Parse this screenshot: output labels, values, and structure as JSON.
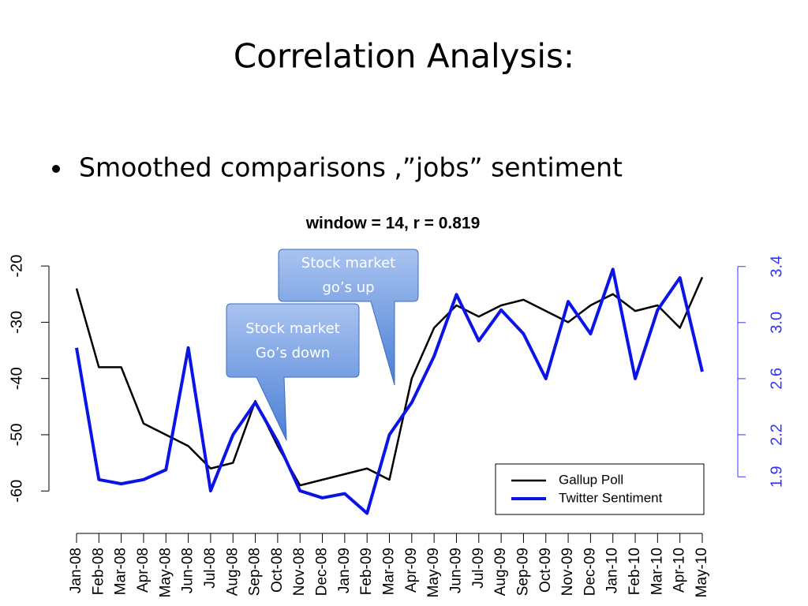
{
  "slide_title": "Correlation Analysis:",
  "bullet": "Smoothed comparisons ,”jobs” sentiment",
  "callouts": [
    {
      "lines": [
        "Stock market",
        "Go’s down"
      ]
    },
    {
      "lines": [
        "Stock market",
        "go’s up"
      ]
    }
  ],
  "chart_data": {
    "type": "line",
    "title": "window = 14, r = 0.819",
    "categories": [
      "Jan-08",
      "Feb-08",
      "Mar-08",
      "Apr-08",
      "May-08",
      "Jun-08",
      "Jul-08",
      "Aug-08",
      "Sep-08",
      "Oct-08",
      "Nov-08",
      "Dec-08",
      "Jan-09",
      "Feb-09",
      "Mar-09",
      "Apr-09",
      "May-09",
      "Jun-09",
      "Jul-09",
      "Aug-09",
      "Sep-09",
      "Oct-09",
      "Nov-09",
      "Dec-09",
      "Jan-10",
      "Feb-10",
      "Mar-10",
      "Apr-10",
      "May-10"
    ],
    "series": [
      {
        "name": "Gallup Poll",
        "color": "#000000",
        "axis": "y",
        "values": [
          -24,
          -38,
          -38,
          -48,
          -50,
          -52,
          -56,
          -55,
          -44,
          -52,
          -59,
          -58,
          -57,
          -56,
          -58,
          -40,
          -31,
          -27,
          -29,
          -27,
          -26,
          -28,
          -30,
          -27,
          -25,
          -28,
          -27,
          -31,
          -22
        ]
      },
      {
        "name": "Twitter Sentiment",
        "color": "#0a14e6",
        "axis": "y2",
        "values": [
          2.82,
          1.88,
          1.85,
          1.88,
          1.95,
          2.82,
          1.8,
          2.2,
          2.43,
          2.15,
          1.8,
          1.75,
          1.78,
          1.64,
          2.2,
          2.43,
          2.76,
          3.2,
          2.87,
          3.09,
          2.92,
          2.6,
          3.15,
          2.92,
          3.38,
          2.6,
          3.09,
          3.32,
          2.65
        ]
      }
    ],
    "ylim": [
      -66.7,
      -17.6
    ],
    "yticks": [
      -20,
      -30,
      -40,
      -50,
      -60
    ],
    "y2lim": [
      1.53,
      3.5
    ],
    "y2ticks": [
      3.4,
      3.0,
      2.6,
      2.2,
      1.9
    ],
    "y2color": "#3333ff",
    "legend": "bottom-right"
  }
}
